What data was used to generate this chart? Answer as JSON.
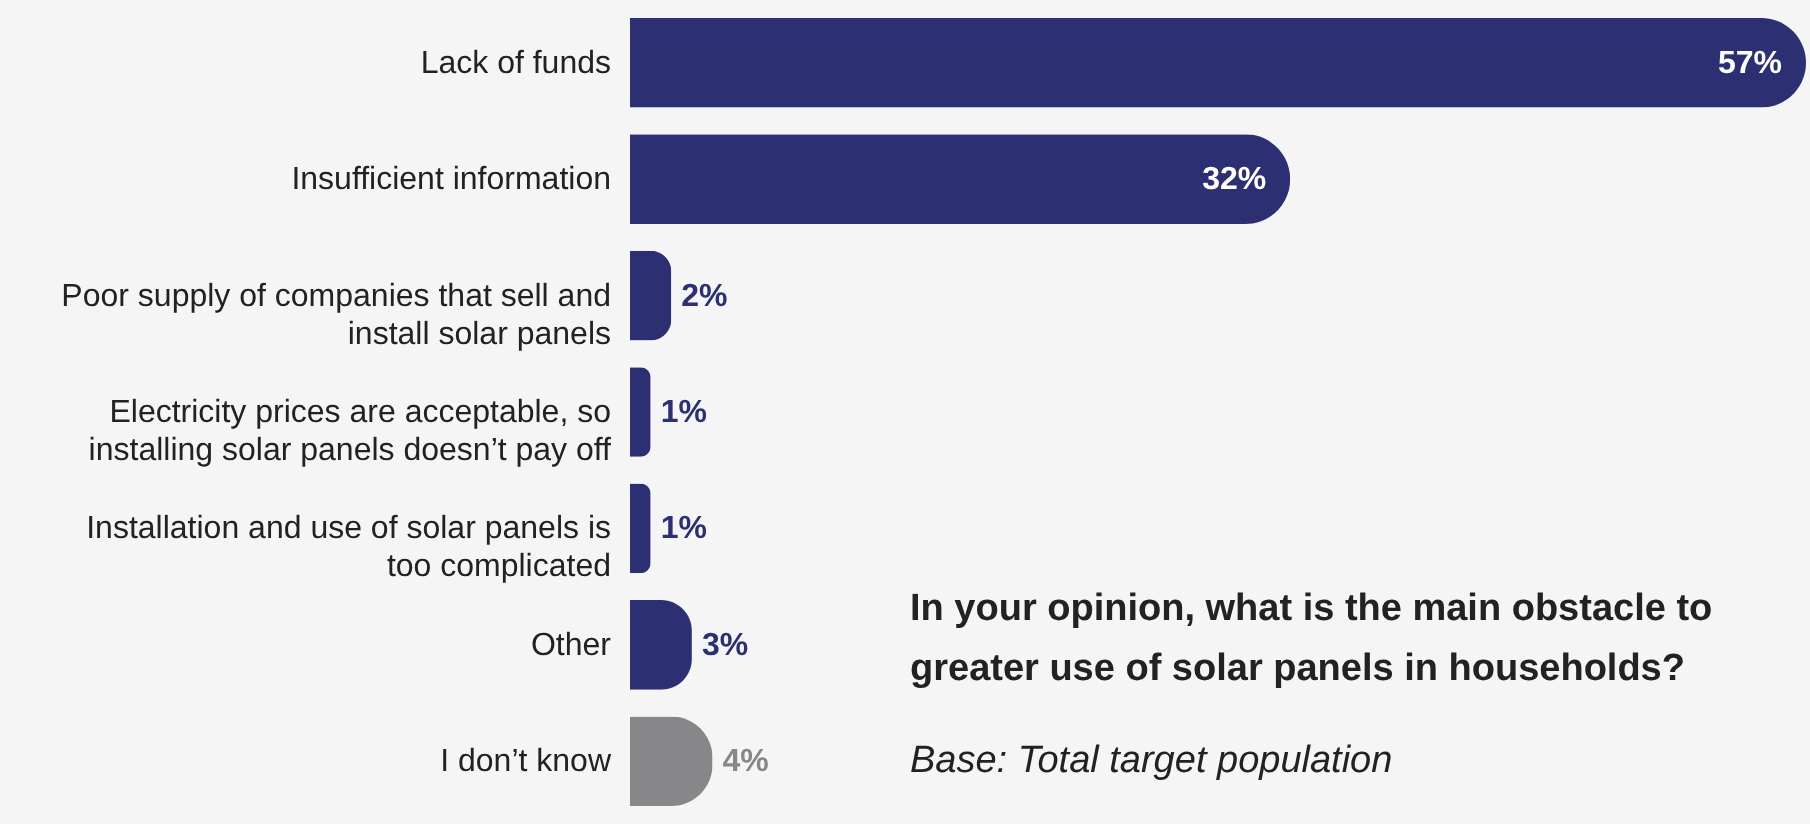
{
  "chart_data": {
    "type": "bar",
    "orientation": "horizontal",
    "categories": [
      "Lack of funds",
      "Insufficient information",
      "Poor supply of companies that sell and install solar panels",
      "Electricity prices are acceptable, so installing solar panels doesn’t pay off",
      "Installation and use of solar panels is too complicated",
      "Other",
      "I don’t know"
    ],
    "values": [
      57,
      32,
      2,
      1,
      1,
      3,
      4
    ],
    "colors": [
      "#2d2f73",
      "#2d2f73",
      "#2d2f73",
      "#2d2f73",
      "#2d2f73",
      "#2d2f73",
      "#87878a"
    ],
    "value_labels": [
      "57%",
      "32%",
      "2%",
      "1%",
      "1%",
      "3%",
      "4%"
    ],
    "annotations": [
      "In your opinion, what is the main obstacle to greater use of solar panels in households?",
      "Base: Total target population"
    ]
  }
}
